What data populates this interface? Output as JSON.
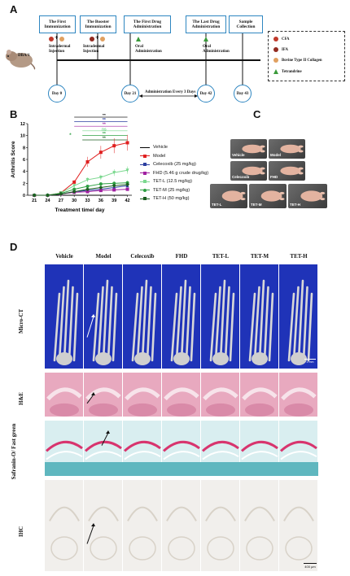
{
  "panels": {
    "a": "A",
    "b": "B",
    "c": "C",
    "d": "D"
  },
  "timeline": {
    "strain": "DBA/1",
    "boxes": [
      {
        "label": "The First Immunization"
      },
      {
        "label": "The Booster Immunization"
      },
      {
        "label": "The First Drug Administration"
      },
      {
        "label": "The Last Drug Administration"
      },
      {
        "label": "Sample Collection"
      }
    ],
    "notes": [
      "Intradermal Injection",
      "Intradermal Injection",
      "Oral Administration",
      "Oral Administration"
    ],
    "days": [
      "Day 0",
      "Day 21",
      "Day 42",
      "Day 43"
    ],
    "span_label": "Administration Every 3 Days",
    "legend": [
      {
        "label": "CFA",
        "color": "#c0392b"
      },
      {
        "label": "IFA",
        "color": "#922b21"
      },
      {
        "label": "Bovine Type II Collagen",
        "color": "#e0a060"
      },
      {
        "label": "Tetrandrine",
        "color": "#3a9a3a"
      }
    ]
  },
  "chart_data": {
    "type": "line",
    "xlabel": "Treatment time/ day",
    "ylabel": "Arthritis Score",
    "x": [
      21,
      24,
      27,
      30,
      33,
      36,
      39,
      42
    ],
    "ylim": [
      0,
      12
    ],
    "yticks": [
      0,
      2,
      4,
      6,
      8,
      10,
      12
    ],
    "grid": false,
    "legend_position": "right",
    "series": [
      {
        "name": "Vehicle",
        "color": "#000000",
        "marker": "none",
        "values": [
          0,
          0,
          0,
          0,
          0,
          0,
          0,
          0
        ]
      },
      {
        "name": "Model",
        "color": "#e02020",
        "marker": "square",
        "values": [
          0,
          0,
          0.4,
          2.2,
          5.6,
          7.2,
          8.3,
          8.8
        ]
      },
      {
        "name": "Celecoxib (25 mg/kg)",
        "color": "#2c3fa0",
        "marker": "triangle",
        "values": [
          0,
          0,
          0.2,
          0.6,
          0.8,
          1.0,
          1.3,
          1.6
        ]
      },
      {
        "name": "FHD (5.46 g crude drug/kg)",
        "color": "#a020a0",
        "marker": "square",
        "values": [
          0,
          0,
          0.2,
          0.5,
          0.6,
          0.8,
          0.9,
          1.0
        ]
      },
      {
        "name": "TET-L (12.5 mg/kg)",
        "color": "#7bd88f",
        "marker": "triangle-down",
        "values": [
          0,
          0,
          0.4,
          1.6,
          2.6,
          3.0,
          3.8,
          4.2
        ]
      },
      {
        "name": "TET-M (25 mg/kg)",
        "color": "#2ea043",
        "marker": "circle",
        "values": [
          0,
          0,
          0.3,
          1.0,
          1.5,
          1.9,
          2.0,
          2.1
        ]
      },
      {
        "name": "TET-H (50 mg/kg)",
        "color": "#1b5e20",
        "marker": "diamond",
        "values": [
          0,
          0,
          0.2,
          0.6,
          1.0,
          1.3,
          1.6,
          1.8
        ]
      }
    ],
    "sig_labels": [
      {
        "text": "**",
        "color": "#222222"
      },
      {
        "text": "**",
        "color": "#2c3fa0"
      },
      {
        "text": "**",
        "color": "#a020a0"
      },
      {
        "text": "ns",
        "color": "#7bd88f"
      },
      {
        "text": "**",
        "color": "#2ea043"
      },
      {
        "text": "**",
        "color": "#1b5e20"
      }
    ],
    "extra_star": {
      "text": "*",
      "color": "#2ea043"
    }
  },
  "photos": {
    "labels": [
      "Vehicle",
      "Model",
      "Celecoxib",
      "FHD",
      "TET-L",
      "TET-M",
      "TET-H"
    ]
  },
  "histology": {
    "columns": [
      "Vehicle",
      "Model",
      "Celecoxib",
      "FHD",
      "TET-L",
      "TET-M",
      "TET-H"
    ],
    "rows": [
      "Micro-CT",
      "H&E",
      "Safranin-O/ Fast green",
      "IHC"
    ],
    "scale_ct": "2 mm",
    "scale_ihc": "400 μm"
  }
}
